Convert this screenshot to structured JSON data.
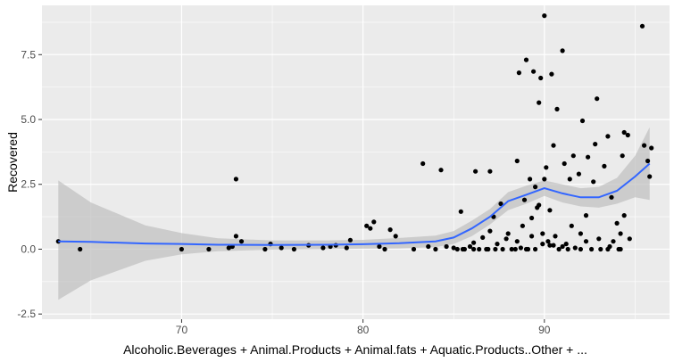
{
  "chart_data": {
    "type": "scatter",
    "xlabel": "Alcoholic.Beverages + Animal.Products + Animal.fats + Aquatic.Products..Other + ...",
    "ylabel": "Recovered",
    "xlim": [
      62.3,
      96.9
    ],
    "ylim": [
      -2.7,
      9.4
    ],
    "x_ticks": [
      70,
      80,
      90
    ],
    "x_tick_labels": [
      "70",
      "80",
      "90"
    ],
    "y_ticks": [
      -2.5,
      0.0,
      2.5,
      5.0,
      7.5
    ],
    "y_tick_labels": [
      "-2.5",
      "0.0",
      "2.5",
      "5.0",
      "7.5"
    ],
    "grid": true,
    "colors": {
      "panel_bg": "#ebebeb",
      "grid": "#ffffff",
      "points": "#000000",
      "smooth_line": "#3366ff",
      "ribbon": "#bfbfbf"
    },
    "smooth": {
      "x": [
        63.2,
        65,
        68,
        70,
        72,
        75,
        78,
        80,
        82,
        84,
        85,
        86,
        87,
        88,
        89,
        90,
        91,
        92,
        93,
        94,
        95,
        95.8
      ],
      "y": [
        0.3,
        0.28,
        0.22,
        0.2,
        0.17,
        0.16,
        0.17,
        0.19,
        0.23,
        0.3,
        0.45,
        0.8,
        1.25,
        1.85,
        2.1,
        2.35,
        2.15,
        2.0,
        2.0,
        2.25,
        2.8,
        3.3
      ],
      "lower": [
        -1.95,
        -1.2,
        -0.45,
        -0.2,
        -0.08,
        -0.02,
        0.0,
        0.02,
        0.03,
        0.08,
        0.2,
        0.5,
        0.95,
        1.5,
        1.75,
        2.05,
        1.8,
        1.65,
        1.6,
        1.75,
        2.0,
        1.9
      ],
      "upper": [
        2.65,
        1.8,
        0.92,
        0.62,
        0.42,
        0.34,
        0.34,
        0.36,
        0.43,
        0.52,
        0.7,
        1.1,
        1.55,
        2.2,
        2.45,
        2.65,
        2.5,
        2.35,
        2.4,
        2.75,
        3.6,
        4.7
      ]
    },
    "points": [
      [
        63.2,
        0.3
      ],
      [
        64.4,
        0.0
      ],
      [
        70.0,
        0.0
      ],
      [
        71.5,
        0.0
      ],
      [
        72.6,
        0.05
      ],
      [
        72.8,
        0.1
      ],
      [
        73.0,
        2.7
      ],
      [
        73.0,
        0.5
      ],
      [
        73.3,
        0.3
      ],
      [
        74.6,
        0.0
      ],
      [
        74.9,
        0.2
      ],
      [
        75.5,
        0.05
      ],
      [
        76.2,
        0.0
      ],
      [
        77.0,
        0.15
      ],
      [
        77.8,
        0.05
      ],
      [
        78.2,
        0.1
      ],
      [
        78.5,
        0.15
      ],
      [
        79.1,
        0.05
      ],
      [
        79.3,
        0.35
      ],
      [
        80.2,
        0.9
      ],
      [
        80.4,
        0.8
      ],
      [
        80.6,
        1.05
      ],
      [
        80.9,
        0.1
      ],
      [
        81.2,
        0.0
      ],
      [
        81.5,
        0.75
      ],
      [
        81.8,
        0.5
      ],
      [
        82.8,
        0.0
      ],
      [
        83.3,
        3.3
      ],
      [
        83.6,
        0.1
      ],
      [
        84.0,
        0.0
      ],
      [
        84.3,
        3.05
      ],
      [
        84.6,
        0.1
      ],
      [
        85.0,
        0.05
      ],
      [
        85.2,
        0.0
      ],
      [
        85.4,
        1.45
      ],
      [
        85.5,
        0.0
      ],
      [
        85.9,
        0.1
      ],
      [
        86.1,
        0.25
      ],
      [
        86.2,
        3.0
      ],
      [
        86.4,
        0.0
      ],
      [
        86.6,
        0.45
      ],
      [
        86.8,
        0.0
      ],
      [
        87.0,
        3.0
      ],
      [
        87.0,
        0.7
      ],
      [
        87.2,
        1.25
      ],
      [
        87.4,
        0.2
      ],
      [
        87.6,
        1.75
      ],
      [
        87.7,
        0.0
      ],
      [
        87.9,
        0.4
      ],
      [
        88.2,
        0.0
      ],
      [
        88.4,
        0.0
      ],
      [
        88.5,
        3.4
      ],
      [
        88.5,
        0.3
      ],
      [
        88.6,
        6.8
      ],
      [
        88.8,
        0.9
      ],
      [
        88.9,
        1.9
      ],
      [
        89.0,
        7.3
      ],
      [
        89.1,
        0.0
      ],
      [
        89.2,
        2.7
      ],
      [
        89.3,
        0.5
      ],
      [
        89.4,
        6.85
      ],
      [
        89.5,
        2.4
      ],
      [
        89.6,
        1.6
      ],
      [
        89.7,
        5.65
      ],
      [
        89.8,
        6.6
      ],
      [
        89.9,
        0.2
      ],
      [
        90.0,
        2.7
      ],
      [
        90.0,
        9.0
      ],
      [
        90.1,
        3.15
      ],
      [
        90.2,
        0.3
      ],
      [
        90.3,
        1.5
      ],
      [
        90.4,
        6.75
      ],
      [
        90.5,
        4.0
      ],
      [
        90.6,
        0.5
      ],
      [
        90.7,
        5.4
      ],
      [
        90.8,
        0.0
      ],
      [
        91.0,
        7.65
      ],
      [
        91.1,
        3.3
      ],
      [
        91.2,
        0.2
      ],
      [
        91.4,
        2.7
      ],
      [
        91.6,
        3.6
      ],
      [
        91.7,
        0.05
      ],
      [
        91.9,
        2.9
      ],
      [
        92.1,
        4.95
      ],
      [
        92.3,
        0.3
      ],
      [
        92.4,
        3.55
      ],
      [
        92.6,
        0.0
      ],
      [
        92.8,
        4.05
      ],
      [
        92.9,
        5.8
      ],
      [
        93.1,
        0.0
      ],
      [
        93.3,
        3.2
      ],
      [
        93.5,
        4.35
      ],
      [
        93.6,
        0.1
      ],
      [
        93.7,
        2.0
      ],
      [
        94.1,
        0.0
      ],
      [
        94.3,
        3.6
      ],
      [
        94.4,
        4.5
      ],
      [
        94.6,
        4.4
      ],
      [
        94.7,
        0.4
      ],
      [
        95.4,
        8.6
      ],
      [
        95.5,
        4.0
      ],
      [
        95.7,
        3.4
      ],
      [
        95.8,
        2.8
      ],
      [
        95.9,
        3.9
      ],
      [
        88.0,
        0.6
      ],
      [
        88.7,
        0.05
      ],
      [
        89.3,
        1.2
      ],
      [
        89.7,
        1.7
      ],
      [
        90.5,
        0.15
      ],
      [
        91.0,
        0.1
      ],
      [
        91.3,
        0.0
      ],
      [
        91.5,
        0.9
      ],
      [
        92.0,
        0.6
      ],
      [
        92.3,
        1.3
      ],
      [
        92.7,
        2.6
      ],
      [
        93.0,
        0.4
      ],
      [
        93.8,
        0.3
      ],
      [
        94.0,
        1.0
      ],
      [
        94.2,
        0.6
      ],
      [
        94.4,
        1.3
      ],
      [
        89.0,
        0.0
      ],
      [
        89.9,
        0.6
      ],
      [
        90.3,
        0.15
      ],
      [
        87.3,
        0.0
      ],
      [
        86.9,
        0.0
      ],
      [
        86.1,
        0.0
      ],
      [
        89.5,
        0.0
      ],
      [
        93.5,
        0.0
      ],
      [
        94.2,
        0.0
      ],
      [
        92.0,
        0.0
      ],
      [
        85.6,
        0.0
      ]
    ]
  }
}
